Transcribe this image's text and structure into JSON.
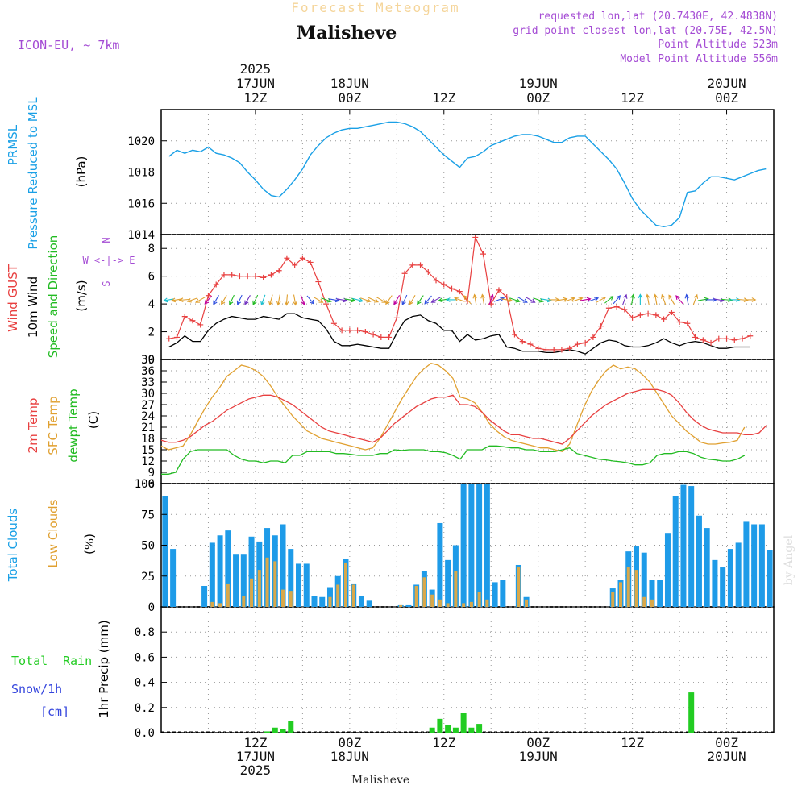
{
  "header": {
    "title": "Forecast Meteogram",
    "location": "Malisheve",
    "model": "ICON-EU, ~ 7km",
    "requested": "requested lon,lat (20.7430E, 42.4838N)",
    "gridpoint": "grid point closest lon,lat (20.75E, 42.5N)",
    "point_alt": "Point Altitude 523m",
    "model_alt": "Model Point Altitude 556m",
    "footer_location": "Malisheve",
    "credit": "by Angel"
  },
  "time_axis": {
    "top_labels": [
      {
        "hour": 12,
        "lines": [
          "2025",
          "17JUN",
          "12Z"
        ]
      },
      {
        "hour": 24,
        "lines": [
          "18JUN",
          "00Z"
        ]
      },
      {
        "hour": 36,
        "lines": [
          "12Z"
        ]
      },
      {
        "hour": 48,
        "lines": [
          "19JUN",
          "00Z"
        ]
      },
      {
        "hour": 60,
        "lines": [
          "12Z"
        ]
      },
      {
        "hour": 72,
        "lines": [
          "20JUN",
          "00Z"
        ]
      }
    ],
    "bottom_labels": [
      {
        "hour": 12,
        "lines": [
          "12Z",
          "17JUN",
          "2025"
        ]
      },
      {
        "hour": 24,
        "lines": [
          "00Z",
          "18JUN"
        ]
      },
      {
        "hour": 36,
        "lines": [
          "12Z"
        ]
      },
      {
        "hour": 48,
        "lines": [
          "00Z",
          "19JUN"
        ]
      },
      {
        "hour": 60,
        "lines": [
          "12Z"
        ]
      },
      {
        "hour": 72,
        "lines": [
          "00Z",
          "20JUN"
        ]
      }
    ]
  },
  "labels": {
    "pressure": [
      "PRMSL",
      "Pressure Reduced to MSL",
      "(hPa)"
    ],
    "wind": [
      "Wind GUST",
      "10m Wind",
      "Speed and Direction",
      "(m/s)"
    ],
    "compass": [
      "N",
      "W <-|-> E",
      "S"
    ],
    "temp": [
      "2m Temp",
      "SFC Temp",
      "dewpt Temp",
      "(C)"
    ],
    "clouds": [
      "Total Clouds",
      "Low Clouds",
      "(%)"
    ],
    "precip": [
      "Total",
      "Rain",
      "Snow/1h",
      "[cm]",
      "1hr Precip (mm)"
    ]
  },
  "colors": {
    "pressure": "#1aa0e6",
    "gust": "#e84040",
    "wind": "#000000",
    "temp2m": "#e84040",
    "sfc": "#e0a030",
    "dewpt": "#22bb22",
    "total_clouds": "#1e9be8",
    "low_clouds": "#d9a84a",
    "rain": "#22cc22",
    "snow": "#3344dd",
    "model": "#a44bd4",
    "title": "#f5d59a"
  },
  "chart_data": [
    {
      "type": "line",
      "name": "pressure",
      "x_start_hour": 1,
      "ylim": [
        1014,
        1022
      ],
      "yticks": [
        1014,
        1016,
        1018,
        1020
      ],
      "values": [
        1019.0,
        1019.4,
        1019.2,
        1019.4,
        1019.3,
        1019.6,
        1019.2,
        1019.1,
        1018.9,
        1018.6,
        1018.0,
        1017.5,
        1016.9,
        1016.5,
        1016.4,
        1016.9,
        1017.5,
        1018.2,
        1019.1,
        1019.7,
        1020.2,
        1020.5,
        1020.7,
        1020.8,
        1020.8,
        1020.9,
        1021.0,
        1021.1,
        1021.2,
        1021.2,
        1021.1,
        1020.9,
        1020.6,
        1020.1,
        1019.6,
        1019.1,
        1018.7,
        1018.3,
        1018.9,
        1019.0,
        1019.3,
        1019.7,
        1019.9,
        1020.1,
        1020.3,
        1020.4,
        1020.4,
        1020.3,
        1020.1,
        1019.9,
        1019.9,
        1020.2,
        1020.3,
        1020.3,
        1019.8,
        1019.3,
        1018.8,
        1018.2,
        1017.3,
        1016.3,
        1015.6,
        1015.1,
        1014.6,
        1014.5,
        1014.6,
        1015.1,
        1016.7,
        1016.8,
        1017.3,
        1017.7,
        1017.7,
        1017.6,
        1017.5,
        1017.7,
        1017.9,
        1018.1,
        1018.2
      ]
    },
    {
      "type": "line",
      "name": "wind",
      "x_start_hour": 1,
      "ylim": [
        0,
        9
      ],
      "yticks": [
        0,
        2,
        4,
        6,
        8
      ],
      "gust": [
        1.5,
        1.6,
        3.1,
        2.8,
        2.5,
        4.6,
        5.4,
        6.1,
        6.1,
        6.0,
        6.0,
        6.0,
        5.9,
        6.1,
        6.4,
        7.3,
        6.8,
        7.3,
        7.0,
        5.6,
        4.0,
        2.6,
        2.1,
        2.1,
        2.1,
        2.0,
        1.8,
        1.6,
        1.6,
        3.0,
        6.2,
        6.8,
        6.8,
        6.3,
        5.7,
        5.4,
        5.1,
        4.9,
        4.2,
        8.8,
        7.6,
        4.0,
        5.0,
        4.5,
        1.8,
        1.3,
        1.1,
        0.8,
        0.7,
        0.7,
        0.7,
        0.8,
        1.1,
        1.2,
        1.6,
        2.4,
        3.7,
        3.8,
        3.6,
        3.0,
        3.2,
        3.3,
        3.2,
        2.9,
        3.4,
        2.7,
        2.6,
        1.6,
        1.4,
        1.2,
        1.5,
        1.5,
        1.4,
        1.5,
        1.7
      ],
      "speed": [
        0.9,
        1.2,
        1.7,
        1.3,
        1.3,
        2.1,
        2.6,
        2.9,
        3.1,
        3.0,
        2.9,
        2.9,
        3.1,
        3.0,
        2.9,
        3.3,
        3.3,
        3.0,
        2.9,
        2.8,
        2.2,
        1.3,
        1.0,
        1.0,
        1.1,
        1.0,
        0.9,
        0.8,
        0.8,
        1.9,
        2.8,
        3.1,
        3.2,
        2.8,
        2.6,
        2.1,
        2.1,
        1.3,
        1.8,
        1.4,
        1.5,
        1.7,
        1.8,
        0.9,
        0.8,
        0.6,
        0.6,
        0.6,
        0.5,
        0.5,
        0.6,
        0.7,
        0.6,
        0.4,
        0.8,
        1.2,
        1.4,
        1.3,
        1.0,
        0.9,
        0.9,
        1.0,
        1.2,
        1.5,
        1.2,
        1.0,
        1.2,
        1.3,
        1.2,
        1.0,
        0.8,
        0.8,
        0.9,
        0.9,
        0.9
      ],
      "direction_deg": [
        80,
        80,
        85,
        70,
        60,
        40,
        30,
        30,
        25,
        25,
        30,
        25,
        20,
        15,
        10,
        5,
        350,
        340,
        320,
        300,
        290,
        280,
        280,
        280,
        285,
        290,
        295,
        300,
        35,
        30,
        25,
        30,
        35,
        40,
        60,
        80,
        90,
        110,
        140,
        170,
        170,
        200,
        250,
        280,
        290,
        300,
        300,
        290,
        280,
        270,
        260,
        250,
        250,
        260,
        250,
        240,
        230,
        220,
        200,
        190,
        180,
        170,
        170,
        160,
        150,
        140,
        170,
        200,
        260,
        270,
        280,
        275,
        270,
        275,
        270
      ]
    },
    {
      "type": "line",
      "name": "temperature",
      "x_start_hour": 1,
      "ylim": [
        6,
        39
      ],
      "yticks": [
        6,
        9,
        12,
        15,
        18,
        21,
        24,
        27,
        30,
        33,
        36,
        39
      ],
      "temp2m": [
        17.5,
        17,
        17,
        17.5,
        18.5,
        20,
        21.5,
        22.5,
        24,
        25.5,
        26.5,
        27.5,
        28.5,
        29,
        29.5,
        29.5,
        29,
        28,
        27,
        25.5,
        24,
        22.5,
        21,
        20,
        19.5,
        19,
        18.5,
        18,
        17.5,
        17,
        18,
        20,
        22,
        23.5,
        25,
        26.5,
        27.5,
        28.5,
        29,
        29,
        29.5,
        27,
        27,
        26.5,
        25,
        23,
        21.5,
        20,
        19,
        19,
        18.5,
        18,
        18,
        17.5,
        17,
        16.5,
        18,
        20,
        22,
        24,
        25.5,
        27,
        28,
        29,
        30,
        30.5,
        31,
        31,
        31,
        30.5,
        29.5,
        27.5,
        25,
        23,
        21.5,
        20.5,
        20,
        19.5,
        19.5,
        19.5,
        19,
        19,
        19.5,
        21.5
      ],
      "sfc": [
        16,
        15,
        15.5,
        16,
        19,
        22.5,
        26,
        29,
        31.5,
        34.5,
        36,
        37.5,
        37,
        36,
        34.5,
        32,
        29,
        26.5,
        24,
        22,
        20,
        19,
        18,
        17.5,
        17,
        16.5,
        16,
        15.5,
        15,
        15.5,
        18,
        21.5,
        25,
        28.5,
        31.5,
        34.5,
        36.5,
        38,
        37.5,
        36,
        34,
        29,
        28.5,
        27.5,
        25,
        22,
        20,
        18.5,
        17.5,
        17,
        16.5,
        16,
        15.5,
        15.5,
        15,
        14.5,
        16.5,
        21.5,
        26.5,
        30.5,
        33.5,
        36,
        37.5,
        36.5,
        37,
        36.5,
        35,
        33,
        30,
        27,
        24,
        22,
        20,
        18.5,
        17,
        16.5,
        16.5,
        16.8,
        17,
        17.5,
        21
      ],
      "dewpt": [
        8.5,
        8.5,
        9,
        12.5,
        14.5,
        15,
        15,
        15,
        15,
        15,
        13.5,
        12.5,
        12,
        12,
        11.5,
        12,
        12,
        11.5,
        13.5,
        13.5,
        14.5,
        14.5,
        14.5,
        14.5,
        14,
        14,
        13.8,
        13.5,
        13.5,
        13.5,
        14,
        14,
        15,
        14.8,
        15,
        15,
        15,
        14.5,
        14.5,
        14.2,
        13.5,
        12.5,
        15,
        15,
        15,
        16,
        16,
        15.8,
        15.5,
        15.5,
        15,
        15,
        14.5,
        14.5,
        14.5,
        15,
        15.5,
        14,
        13.5,
        13,
        12.5,
        12.3,
        12,
        11.8,
        11.5,
        11,
        11,
        11.5,
        13.5,
        14,
        14,
        14.5,
        14.5,
        14,
        13,
        12.5,
        12.3,
        12,
        12,
        12.5,
        13.5
      ]
    },
    {
      "type": "bar",
      "name": "clouds",
      "x_start_hour": 1,
      "ylim": [
        0,
        100
      ],
      "yticks": [
        0,
        25,
        50,
        75,
        100
      ],
      "total": [
        90,
        47,
        0,
        0,
        0,
        17,
        52,
        58,
        62,
        43,
        43,
        57,
        53,
        64,
        58,
        67,
        47,
        35,
        35,
        9,
        8,
        16,
        25,
        39,
        19,
        9,
        5,
        0,
        0,
        0,
        2,
        2,
        18,
        29,
        14,
        68,
        38,
        50,
        100,
        100,
        100,
        100,
        20,
        22,
        0,
        34,
        8,
        0,
        0,
        0,
        0,
        0,
        0,
        0,
        0,
        0,
        0,
        15,
        22,
        45,
        49,
        44,
        22,
        22,
        60,
        90,
        99,
        98,
        74,
        64,
        38,
        32,
        47,
        52,
        69,
        67,
        67,
        46
      ],
      "low": [
        0,
        0,
        0,
        0,
        0,
        0,
        4,
        3,
        19,
        0,
        9,
        23,
        30,
        40,
        37,
        14,
        13,
        0,
        0,
        0,
        0,
        8,
        18,
        36,
        18,
        0,
        0,
        0,
        0,
        0,
        2,
        0,
        17,
        24,
        10,
        6,
        3,
        29,
        3,
        4,
        12,
        6,
        0,
        0,
        0,
        32,
        6,
        0,
        0,
        0,
        0,
        0,
        0,
        0,
        0,
        0,
        0,
        12,
        20,
        32,
        30,
        8,
        6,
        0,
        0,
        0,
        0,
        0,
        0,
        0,
        0,
        0,
        0,
        0,
        0,
        0,
        0,
        0
      ]
    },
    {
      "type": "bar",
      "name": "precip",
      "x_start_hour": 1,
      "ylim": [
        0,
        1.0
      ],
      "yticks": [
        0,
        0.2,
        0.4,
        0.6,
        0.8
      ],
      "rain": [
        0,
        0,
        0,
        0,
        0,
        0,
        0,
        0,
        0,
        0,
        0,
        0,
        0,
        0.01,
        0.04,
        0.03,
        0.09,
        0,
        0,
        0,
        0,
        0,
        0,
        0,
        0,
        0,
        0,
        0,
        0,
        0,
        0,
        0,
        0,
        0,
        0.04,
        0.11,
        0.06,
        0.04,
        0.16,
        0.04,
        0.07,
        0,
        0,
        0,
        0,
        0,
        0,
        0,
        0,
        0,
        0,
        0,
        0,
        0,
        0,
        0,
        0,
        0,
        0,
        0,
        0,
        0,
        0,
        0,
        0,
        0,
        0,
        0.32,
        0,
        0,
        0,
        0,
        0,
        0,
        0,
        0,
        0,
        0,
        0
      ]
    }
  ]
}
